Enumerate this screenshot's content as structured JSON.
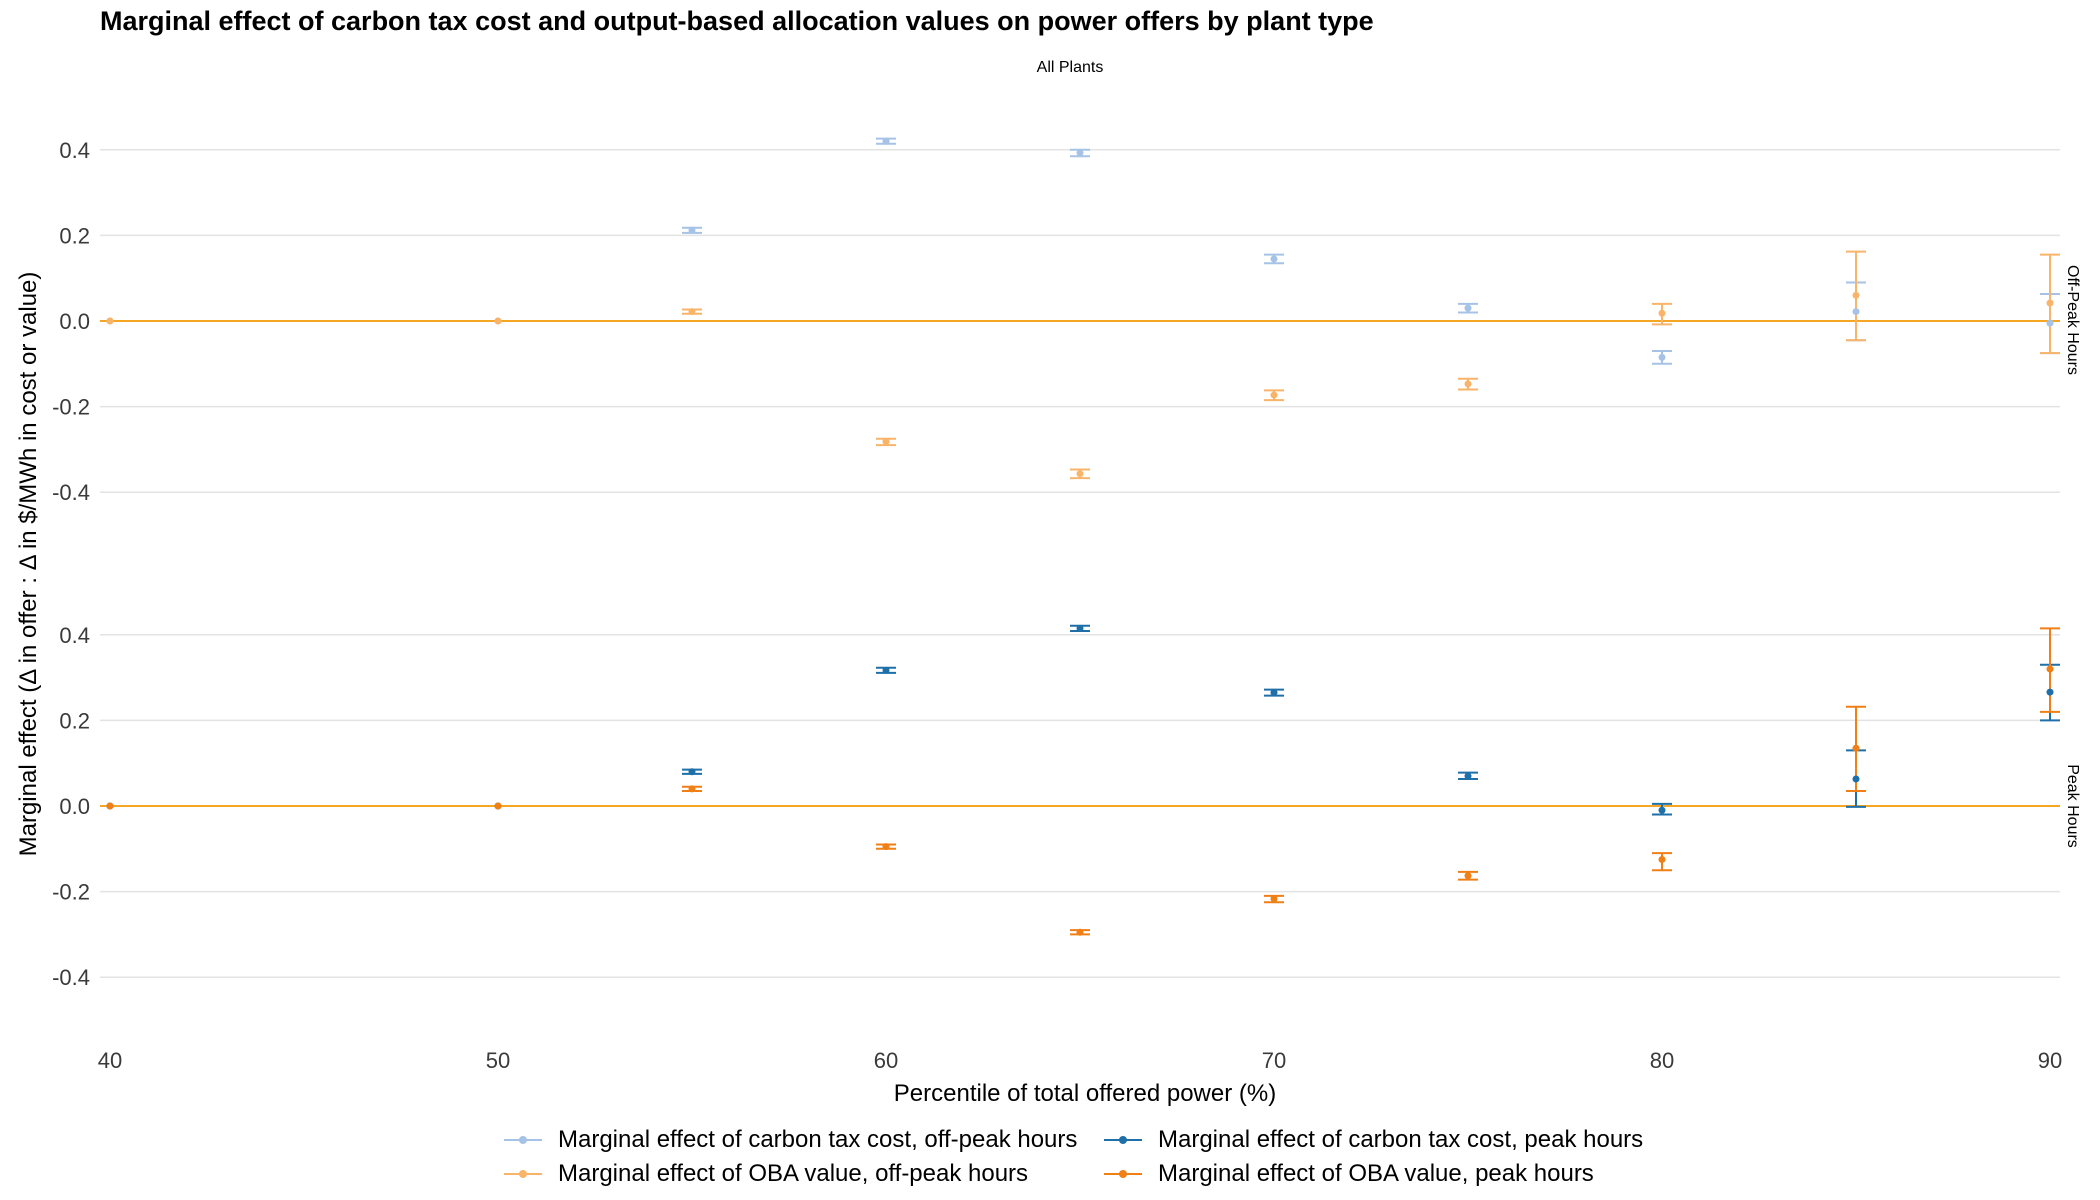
{
  "chart_data": {
    "type": "scatter",
    "title": "Marginal effect of carbon tax cost and output-based allocation values on power offers by plant type",
    "subtitle": "All Plants",
    "xlabel": "Percentile of total offered power (%)",
    "ylabel": "Marginal effect (Δ in offer : Δ in $/MWh in cost or value)",
    "x_ticks": [
      "40",
      "50",
      "60",
      "70",
      "80",
      "90"
    ],
    "xlim": [
      40,
      90
    ],
    "y_ticks": [
      "0.4",
      "0.2",
      "0.0",
      "-0.2",
      "-0.4"
    ],
    "ylim": [
      -0.5,
      0.45
    ],
    "panels": [
      "Off-Peak Hours",
      "Peak Hours"
    ],
    "zero_line_color": "#f5a623",
    "grid": true,
    "legend_position": "bottom",
    "series": [
      {
        "name": "Marginal effect of carbon tax cost, off-peak hours",
        "color": "#a6c2e6",
        "panel": "Off-Peak Hours",
        "points": [
          {
            "x": 40,
            "y": 0.0,
            "lo": 0.0,
            "hi": 0.0
          },
          {
            "x": 50,
            "y": 0.0,
            "lo": 0.0,
            "hi": 0.0
          },
          {
            "x": 55,
            "y": 0.212,
            "lo": 0.206,
            "hi": 0.218
          },
          {
            "x": 60,
            "y": 0.42,
            "lo": 0.414,
            "hi": 0.426
          },
          {
            "x": 65,
            "y": 0.393,
            "lo": 0.385,
            "hi": 0.4
          },
          {
            "x": 70,
            "y": 0.145,
            "lo": 0.135,
            "hi": 0.155
          },
          {
            "x": 75,
            "y": 0.03,
            "lo": 0.02,
            "hi": 0.04
          },
          {
            "x": 80,
            "y": -0.085,
            "lo": -0.1,
            "hi": -0.07
          },
          {
            "x": 85,
            "y": 0.022,
            "lo": -0.045,
            "hi": 0.09
          },
          {
            "x": 90,
            "y": -0.005,
            "lo": -0.075,
            "hi": 0.063
          }
        ]
      },
      {
        "name": "Marginal effect of carbon tax cost, peak hours",
        "color": "#1f6fa8",
        "panel": "Peak Hours",
        "points": [
          {
            "x": 40,
            "y": 0.0,
            "lo": 0.0,
            "hi": 0.0
          },
          {
            "x": 50,
            "y": 0.0,
            "lo": 0.0,
            "hi": 0.0
          },
          {
            "x": 55,
            "y": 0.08,
            "lo": 0.075,
            "hi": 0.085
          },
          {
            "x": 60,
            "y": 0.317,
            "lo": 0.311,
            "hi": 0.323
          },
          {
            "x": 65,
            "y": 0.415,
            "lo": 0.409,
            "hi": 0.421
          },
          {
            "x": 70,
            "y": 0.265,
            "lo": 0.258,
            "hi": 0.272
          },
          {
            "x": 75,
            "y": 0.07,
            "lo": 0.063,
            "hi": 0.078
          },
          {
            "x": 80,
            "y": -0.01,
            "lo": -0.02,
            "hi": 0.005
          },
          {
            "x": 85,
            "y": 0.063,
            "lo": -0.002,
            "hi": 0.13
          },
          {
            "x": 90,
            "y": 0.266,
            "lo": 0.2,
            "hi": 0.33
          }
        ]
      },
      {
        "name": "Marginal effect of OBA value, off-peak hours",
        "color": "#f9b46a",
        "panel": "Off-Peak Hours",
        "points": [
          {
            "x": 40,
            "y": 0.0,
            "lo": 0.0,
            "hi": 0.0
          },
          {
            "x": 50,
            "y": 0.0,
            "lo": 0.0,
            "hi": 0.0
          },
          {
            "x": 55,
            "y": 0.022,
            "lo": 0.017,
            "hi": 0.027
          },
          {
            "x": 60,
            "y": -0.282,
            "lo": -0.29,
            "hi": -0.275
          },
          {
            "x": 65,
            "y": -0.357,
            "lo": -0.367,
            "hi": -0.347
          },
          {
            "x": 70,
            "y": -0.173,
            "lo": -0.185,
            "hi": -0.162
          },
          {
            "x": 75,
            "y": -0.147,
            "lo": -0.16,
            "hi": -0.135
          },
          {
            "x": 80,
            "y": 0.018,
            "lo": -0.008,
            "hi": 0.04
          },
          {
            "x": 85,
            "y": 0.06,
            "lo": -0.045,
            "hi": 0.162
          },
          {
            "x": 90,
            "y": 0.042,
            "lo": -0.075,
            "hi": 0.155
          }
        ]
      },
      {
        "name": "Marginal effect of OBA value, peak hours",
        "color": "#f07f16",
        "panel": "Peak Hours",
        "points": [
          {
            "x": 40,
            "y": 0.0,
            "lo": 0.0,
            "hi": 0.0
          },
          {
            "x": 50,
            "y": 0.0,
            "lo": 0.0,
            "hi": 0.0
          },
          {
            "x": 55,
            "y": 0.04,
            "lo": 0.035,
            "hi": 0.045
          },
          {
            "x": 60,
            "y": -0.095,
            "lo": -0.1,
            "hi": -0.09
          },
          {
            "x": 65,
            "y": -0.295,
            "lo": -0.3,
            "hi": -0.29
          },
          {
            "x": 70,
            "y": -0.217,
            "lo": -0.225,
            "hi": -0.21
          },
          {
            "x": 75,
            "y": -0.163,
            "lo": -0.172,
            "hi": -0.154
          },
          {
            "x": 80,
            "y": -0.125,
            "lo": -0.15,
            "hi": -0.11
          },
          {
            "x": 85,
            "y": 0.135,
            "lo": 0.035,
            "hi": 0.232
          },
          {
            "x": 90,
            "y": 0.32,
            "lo": 0.22,
            "hi": 0.415
          }
        ]
      }
    ]
  }
}
